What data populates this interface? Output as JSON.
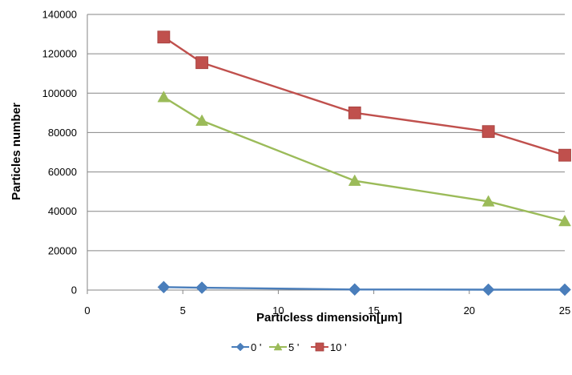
{
  "chart_data": {
    "type": "line",
    "title": "",
    "xlabel": "Particless dimension[µm]",
    "ylabel": "Particles  number",
    "xlim": [
      0,
      25
    ],
    "ylim": [
      0,
      140000
    ],
    "x_ticks": [
      0,
      5,
      10,
      15,
      20,
      25
    ],
    "y_ticks": [
      0,
      20000,
      40000,
      60000,
      80000,
      100000,
      120000,
      140000
    ],
    "grid": "horizontal",
    "legend_position": "bottom",
    "series": [
      {
        "name": "0 '",
        "color": "#4a7ebb",
        "marker": "diamond",
        "x": [
          4,
          6,
          14,
          21,
          25
        ],
        "y": [
          1500,
          1200,
          300,
          200,
          200
        ]
      },
      {
        "name": "5 '",
        "color": "#9bbb59",
        "marker": "triangle",
        "x": [
          4,
          6,
          14,
          21,
          25
        ],
        "y": [
          98000,
          86000,
          55500,
          45000,
          35000
        ]
      },
      {
        "name": "10 '",
        "color": "#c0504d",
        "marker": "square",
        "x": [
          4,
          6,
          14,
          21,
          25
        ],
        "y": [
          128500,
          115500,
          90000,
          80500,
          68500
        ]
      }
    ]
  }
}
